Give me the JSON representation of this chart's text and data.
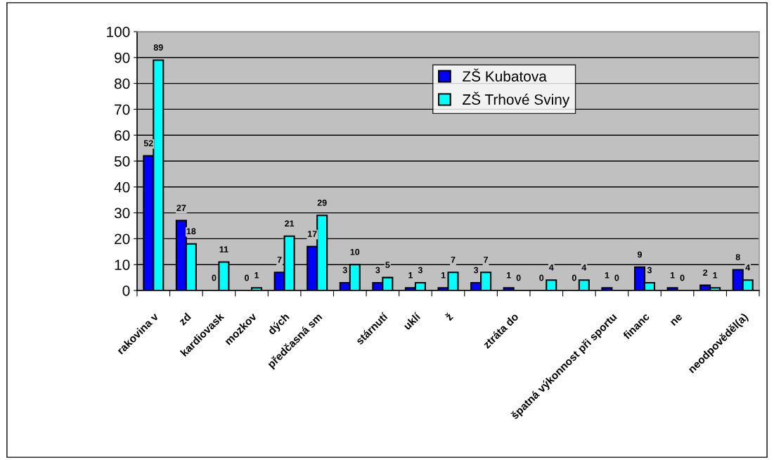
{
  "chart_data": {
    "type": "bar",
    "categories": [
      "rakovina v",
      "zd",
      "kardiovask",
      "mozkov",
      "dých",
      "předčasná sm",
      null,
      "stárnutí",
      "uklí",
      "ž",
      null,
      "ztráta do",
      null,
      null,
      "špatná výkonnost při sportu",
      "financ",
      "ne",
      null,
      "neodpověděl(a)"
    ],
    "series": [
      {
        "name": "ZŠ Kubatova",
        "color": "#0000ff",
        "values": [
          52,
          27,
          0,
          0,
          7,
          17,
          3,
          3,
          1,
          1,
          3,
          1,
          0,
          0,
          1,
          9,
          1,
          2,
          8
        ]
      },
      {
        "name": "ZŠ Trhové Sviny",
        "color": "#00ffff",
        "values": [
          89,
          18,
          11,
          1,
          21,
          29,
          10,
          5,
          3,
          7,
          7,
          0,
          4,
          4,
          0,
          3,
          0,
          1,
          4
        ]
      }
    ],
    "ylim": [
      0,
      100
    ],
    "yticks": [
      0,
      10,
      20,
      30,
      40,
      50,
      60,
      70,
      80,
      90,
      100
    ],
    "grid": "y",
    "legend": "top",
    "data_labels": true
  }
}
